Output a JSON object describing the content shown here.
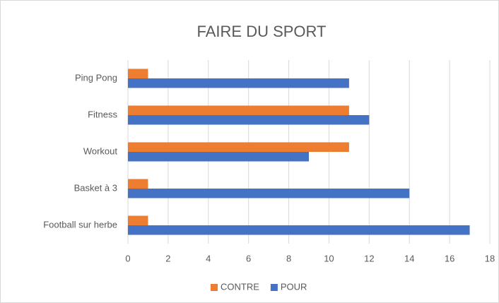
{
  "chart_data": {
    "type": "bar",
    "orientation": "horizontal",
    "title": "FAIRE DU SPORT",
    "categories": [
      "Ping Pong",
      "Fitness",
      "Workout",
      "Basket à 3",
      "Football sur herbe"
    ],
    "series": [
      {
        "name": "CONTRE",
        "color": "#ed7d31",
        "values": [
          1,
          11,
          11,
          1,
          1
        ]
      },
      {
        "name": "POUR",
        "color": "#4472c4",
        "values": [
          11,
          12,
          9,
          14,
          17
        ]
      }
    ],
    "xlim": [
      0,
      18
    ],
    "xticks": [
      0,
      2,
      4,
      6,
      8,
      10,
      12,
      14,
      16,
      18
    ],
    "grid": true,
    "legend": "bottom"
  }
}
